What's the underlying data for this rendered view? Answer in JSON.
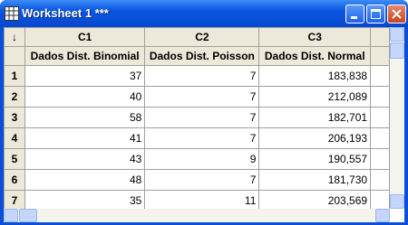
{
  "window": {
    "title": "Worksheet 1 ***"
  },
  "table": {
    "corner": "↓",
    "columns": [
      "C1",
      "C2",
      "C3"
    ],
    "names": [
      "Dados Dist. Binomial",
      "Dados Dist. Poisson",
      "Dados Dist. Normal"
    ],
    "rows": [
      {
        "label": "1",
        "cells": [
          "37",
          "7",
          "183,838"
        ]
      },
      {
        "label": "2",
        "cells": [
          "40",
          "7",
          "212,089"
        ]
      },
      {
        "label": "3",
        "cells": [
          "58",
          "7",
          "182,701"
        ]
      },
      {
        "label": "4",
        "cells": [
          "41",
          "7",
          "206,193"
        ]
      },
      {
        "label": "5",
        "cells": [
          "43",
          "9",
          "190,557"
        ]
      },
      {
        "label": "6",
        "cells": [
          "48",
          "7",
          "181,730"
        ]
      },
      {
        "label": "7",
        "cells": [
          "35",
          "11",
          "203,569"
        ]
      }
    ]
  }
}
